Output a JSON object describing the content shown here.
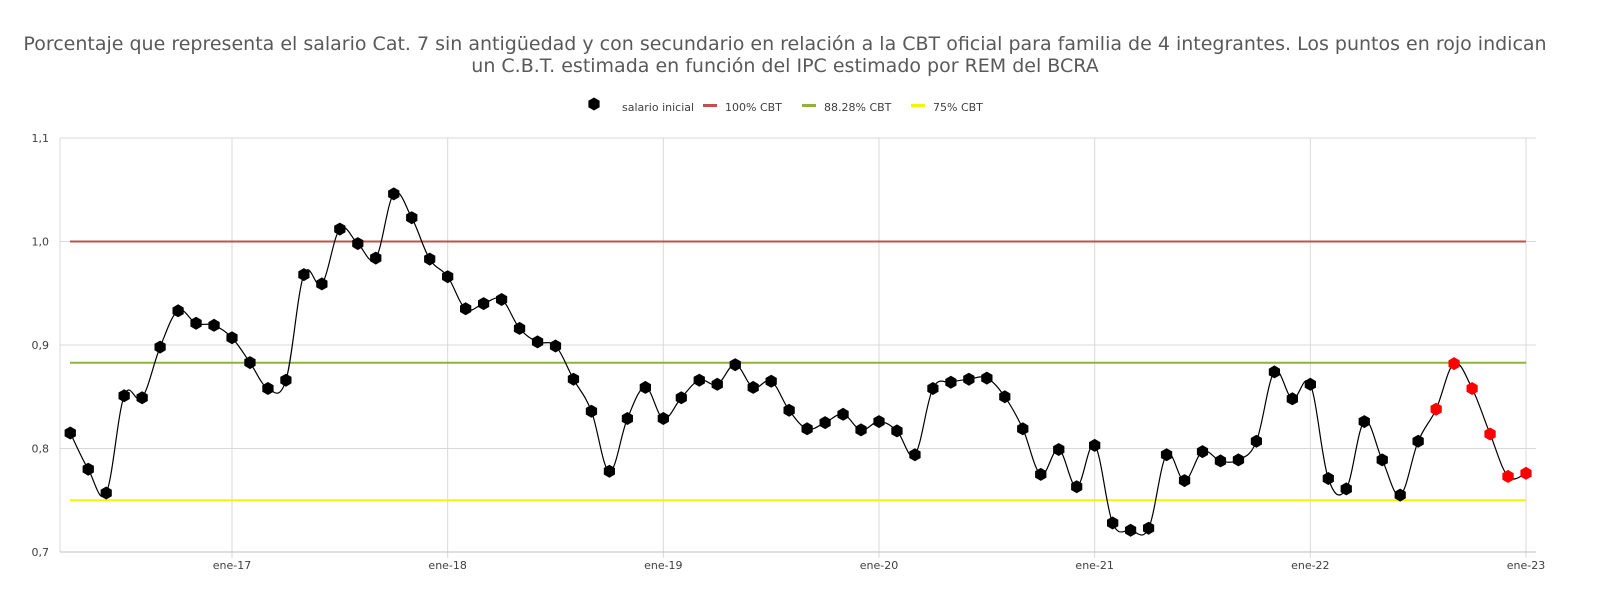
{
  "chart_data": {
    "type": "line",
    "title": "Porcentaje que representa el salario Cat. 7 sin antigüedad y con secundario en relación a la CBT oficial para familia de 4 integrantes. Los puntos en rojo indican un C.B.T. estimada en función del IPC estimado por REM del BCRA",
    "title_lines": [
      "Porcentaje que representa el salario Cat. 7 sin antigüedad y con secundario en relación a la CBT oficial para familia de 4 integrantes. Los puntos en rojo indican",
      "un C.B.T. estimada en función del IPC estimado por REM del BCRA"
    ],
    "xlabel": "",
    "ylabel": "",
    "x_start": "2016-04",
    "x_ticks": [
      "ene-17",
      "ene-18",
      "ene-19",
      "ene-20",
      "ene-21",
      "ene-22",
      "ene-23"
    ],
    "y_ticks": [
      "0,7",
      "0,8",
      "0,9",
      "1,0",
      "1,1"
    ],
    "ylim": [
      0.7,
      1.1
    ],
    "grid": true,
    "legend_position": "top",
    "colors": {
      "salario": "#000000",
      "estimated": "#ff0000",
      "cbt100": "#c0504d",
      "cbt8828": "#8db33a",
      "cbt75": "#f5f500",
      "grid": "#d9d9d9"
    },
    "series": [
      {
        "name": "salario inicial",
        "values": [
          0.815,
          0.78,
          0.757,
          0.851,
          0.849,
          0.898,
          0.933,
          0.921,
          0.919,
          0.907,
          0.883,
          0.858,
          0.866,
          0.968,
          0.959,
          1.012,
          0.998,
          0.984,
          1.046,
          1.023,
          0.983,
          0.966,
          0.935,
          0.94,
          0.944,
          0.916,
          0.903,
          0.899,
          0.867,
          0.836,
          0.778,
          0.829,
          0.859,
          0.829,
          0.849,
          0.866,
          0.862,
          0.881,
          0.859,
          0.865,
          0.837,
          0.819,
          0.825,
          0.833,
          0.818,
          0.826,
          0.817,
          0.794,
          0.858,
          0.864,
          0.867,
          0.868,
          0.85,
          0.819,
          0.775,
          0.799,
          0.763,
          0.803,
          0.728,
          0.721,
          0.723,
          0.794,
          0.769,
          0.797,
          0.788,
          0.789,
          0.807,
          0.874,
          0.848,
          0.862,
          0.771,
          0.761,
          0.826,
          0.789,
          0.755,
          0.807,
          0.838,
          0.882,
          0.858,
          0.814,
          0.773,
          0.776
        ],
        "estimated_from_index": 76
      },
      {
        "name": "100% CBT",
        "value": 1.0
      },
      {
        "name": "88.28% CBT",
        "value": 0.8828
      },
      {
        "name": "75% CBT",
        "value": 0.75
      }
    ]
  }
}
